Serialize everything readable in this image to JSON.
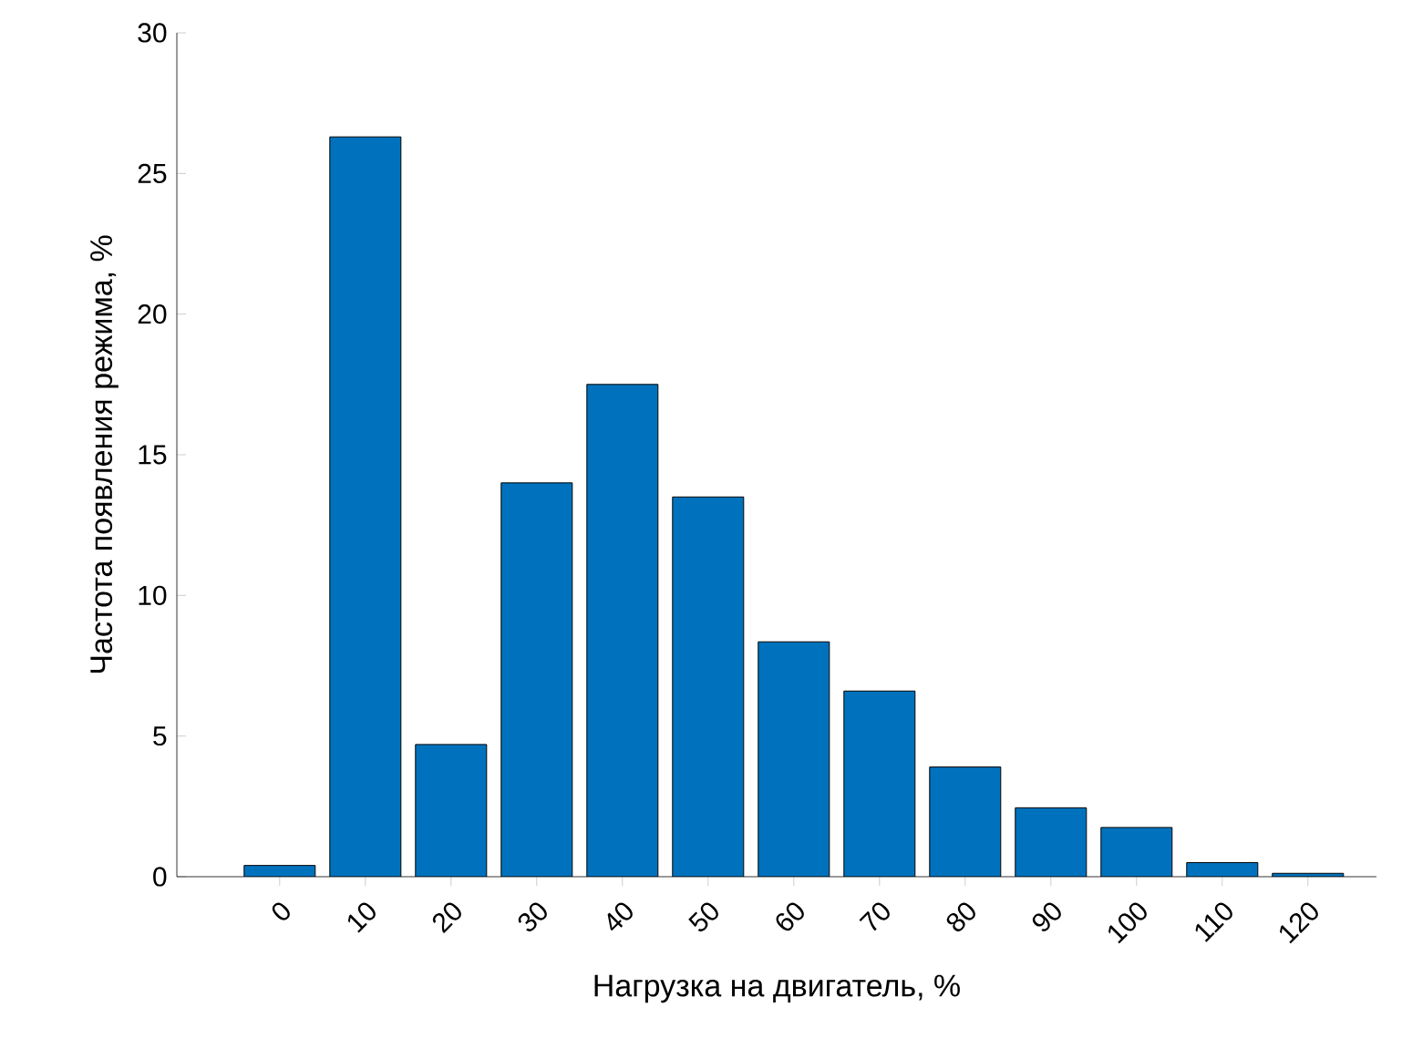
{
  "chart_data": {
    "type": "bar",
    "xlabel": "Нагрузка на двигатель, %",
    "ylabel": "Частота появления режима, %",
    "categories": [
      "0",
      "10",
      "20",
      "30",
      "40",
      "50",
      "60",
      "70",
      "80",
      "90",
      "100",
      "110",
      "120"
    ],
    "values": [
      0.4,
      26.3,
      4.7,
      14.0,
      17.5,
      13.5,
      8.35,
      6.6,
      3.9,
      2.45,
      1.75,
      0.5,
      0.12
    ],
    "color": "#0072bd",
    "ylim": [
      0,
      30
    ],
    "yticks": [
      0,
      5,
      10,
      15,
      20,
      25,
      30
    ]
  }
}
